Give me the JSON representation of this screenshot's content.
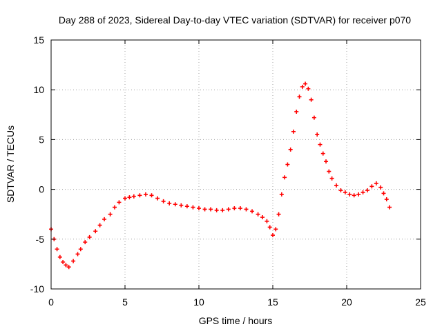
{
  "chart_data": {
    "type": "scatter",
    "title": "Day 288 of 2023, Sidereal Day-to-day VTEC variation (SDTVAR) for receiver p070",
    "xlabel": "GPS time / hours",
    "ylabel": "SDTVAR / TECUs",
    "xlim": [
      0,
      25
    ],
    "ylim": [
      -10,
      15
    ],
    "xticks": [
      "0",
      "5",
      "10",
      "15",
      "20",
      "25"
    ],
    "yticks": [
      "-10",
      "-5",
      "0",
      "5",
      "10",
      "15"
    ],
    "grid": true,
    "marker": "+",
    "series": [
      {
        "name": "SDTVAR",
        "color": "#ff0000",
        "x": [
          0.0,
          0.2,
          0.4,
          0.6,
          0.8,
          1.0,
          1.2,
          1.5,
          1.8,
          2.0,
          2.3,
          2.6,
          3.0,
          3.3,
          3.6,
          4.0,
          4.3,
          4.6,
          5.0,
          5.3,
          5.6,
          6.0,
          6.4,
          6.8,
          7.2,
          7.6,
          8.0,
          8.4,
          8.8,
          9.2,
          9.6,
          10.0,
          10.4,
          10.8,
          11.2,
          11.6,
          12.0,
          12.4,
          12.8,
          13.2,
          13.6,
          14.0,
          14.3,
          14.6,
          14.8,
          15.0,
          15.2,
          15.4,
          15.6,
          15.8,
          16.0,
          16.2,
          16.4,
          16.6,
          16.8,
          17.0,
          17.2,
          17.4,
          17.6,
          17.8,
          18.0,
          18.2,
          18.4,
          18.6,
          18.8,
          19.0,
          19.3,
          19.6,
          19.9,
          20.2,
          20.5,
          20.8,
          21.1,
          21.4,
          21.7,
          22.0,
          22.3,
          22.5,
          22.7,
          22.9
        ],
        "y": [
          -4.0,
          -5.0,
          -6.0,
          -6.8,
          -7.3,
          -7.6,
          -7.8,
          -7.2,
          -6.5,
          -6.0,
          -5.3,
          -4.8,
          -4.2,
          -3.6,
          -3.0,
          -2.5,
          -1.8,
          -1.3,
          -0.9,
          -0.8,
          -0.7,
          -0.6,
          -0.5,
          -0.6,
          -0.9,
          -1.2,
          -1.4,
          -1.5,
          -1.6,
          -1.7,
          -1.8,
          -1.9,
          -2.0,
          -2.0,
          -2.1,
          -2.1,
          -2.0,
          -1.9,
          -1.9,
          -2.0,
          -2.2,
          -2.5,
          -2.8,
          -3.2,
          -3.8,
          -4.6,
          -4.0,
          -2.5,
          -0.5,
          1.2,
          2.5,
          4.0,
          5.8,
          7.8,
          9.3,
          10.3,
          10.6,
          10.1,
          9.0,
          7.2,
          5.5,
          4.5,
          3.6,
          2.8,
          1.8,
          1.1,
          0.4,
          -0.1,
          -0.3,
          -0.5,
          -0.6,
          -0.5,
          -0.3,
          -0.1,
          0.3,
          0.6,
          0.2,
          -0.4,
          -1.0,
          -1.8
        ]
      }
    ]
  }
}
